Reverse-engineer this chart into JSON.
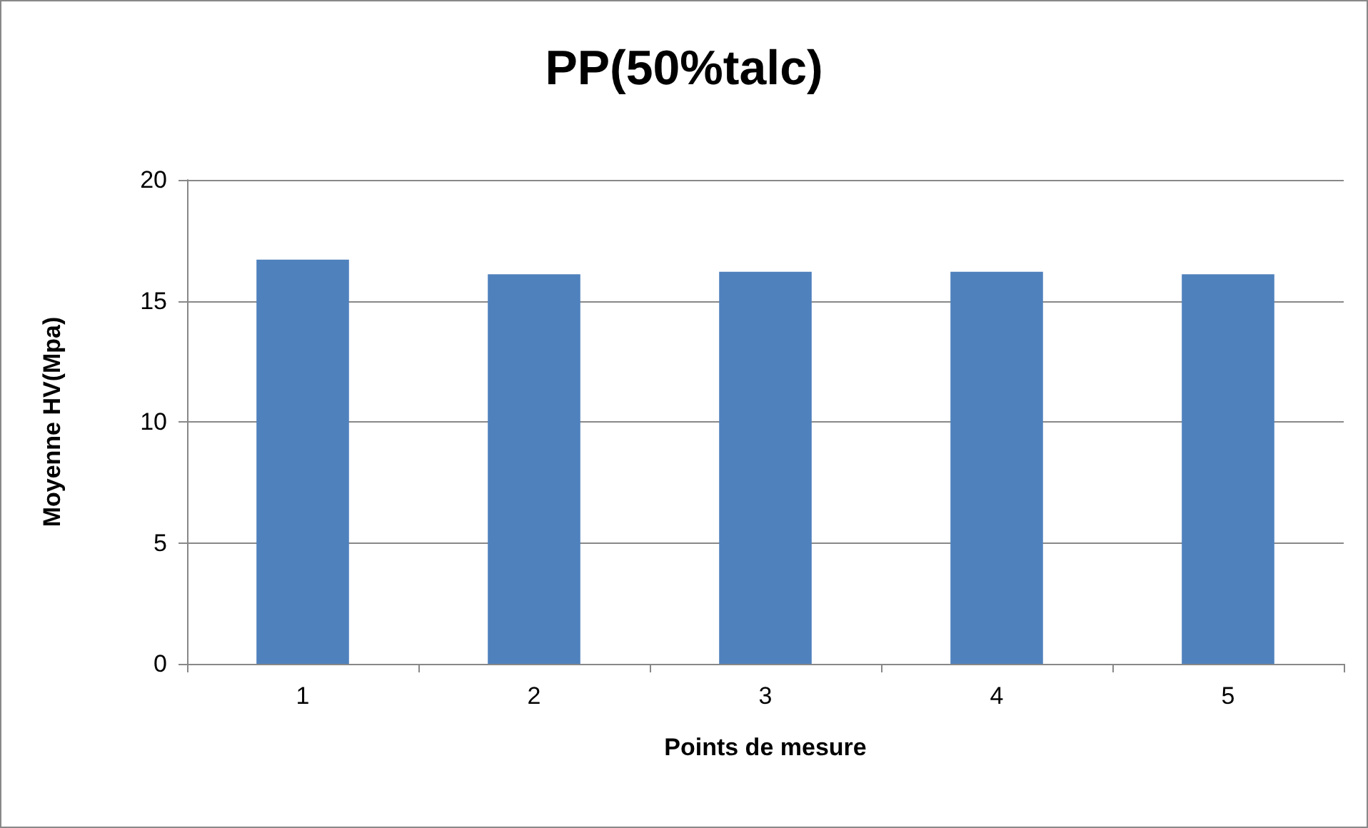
{
  "chart_data": {
    "type": "bar",
    "title": "PP(50%talc)",
    "xlabel": "Points de mesure",
    "ylabel": "Moyenne HV(Mpa)",
    "categories": [
      "1",
      "2",
      "3",
      "4",
      "5"
    ],
    "values": [
      16.7,
      16.1,
      16.2,
      16.2,
      16.1
    ],
    "color": "#4f81bd",
    "ylim": [
      0,
      20
    ],
    "yticks": [
      0,
      5,
      10,
      15,
      20
    ],
    "grid": "y"
  }
}
